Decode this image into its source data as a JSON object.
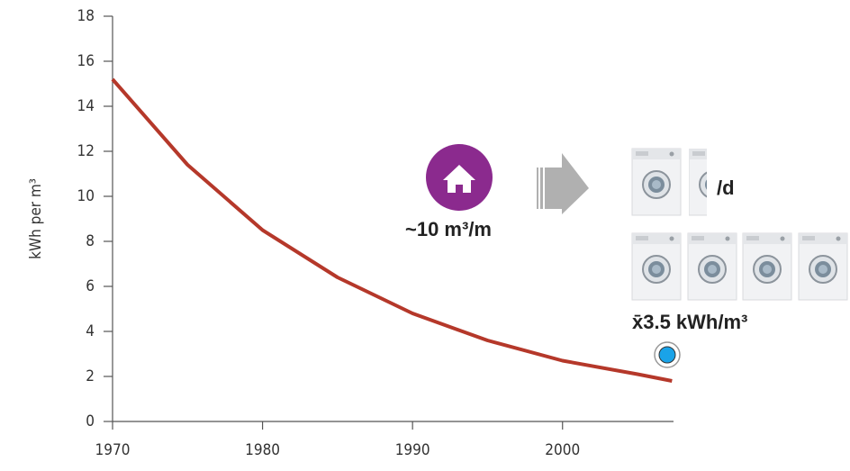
{
  "chart_data": {
    "type": "line",
    "y_label": "kWh per m³",
    "x": [
      1970,
      1975,
      1980,
      1985,
      1990,
      1995,
      2000,
      2005,
      2007.3
    ],
    "values": [
      15.2,
      11.4,
      8.5,
      6.4,
      4.8,
      3.6,
      2.7,
      2.1,
      1.8
    ],
    "color": "#b5382a",
    "xlim": [
      1970,
      2007.4
    ],
    "xticks": [
      1970,
      1980,
      1990,
      2000
    ],
    "ylim": [
      0,
      18
    ],
    "yticks": [
      0,
      2,
      4,
      6,
      8,
      10,
      12,
      14,
      16,
      18
    ],
    "grid": false,
    "annotations": [
      "~10 m³/m",
      "/d",
      "x̄3.5 kWh/m³"
    ]
  }
}
